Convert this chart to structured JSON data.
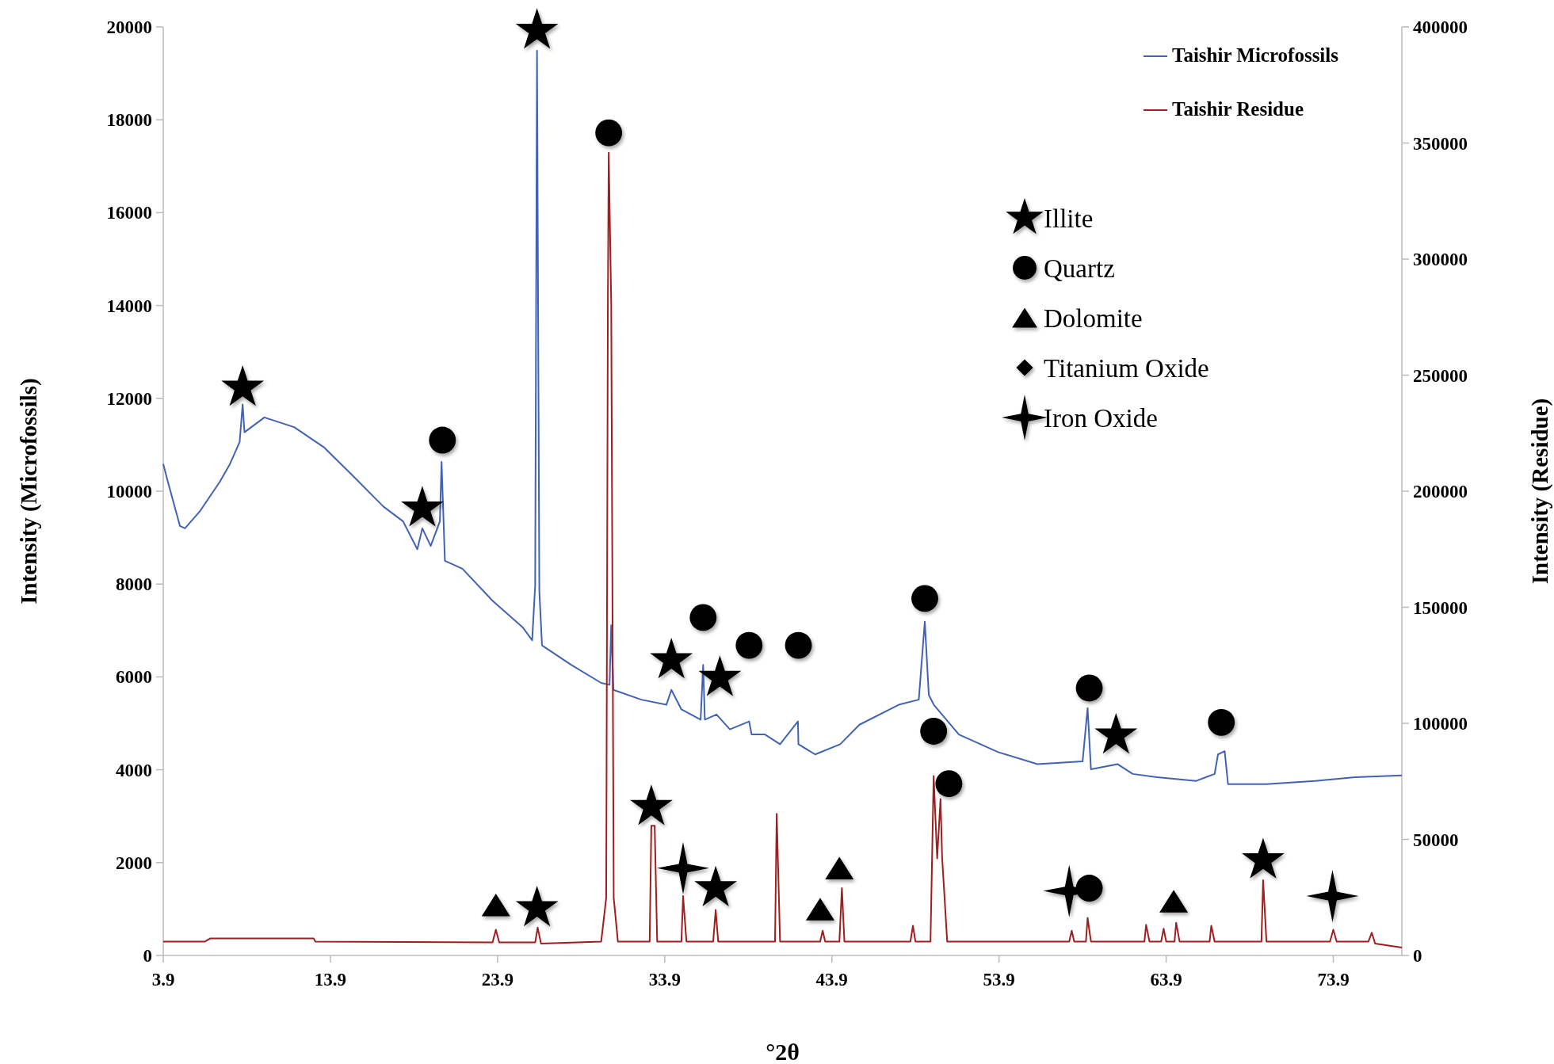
{
  "chart_data": {
    "type": "line",
    "xlabel": "°2θ",
    "ylabel": "Intensity (Microfossils)",
    "y2label": "Intensity (Residue)",
    "xlim": [
      3.9,
      78
    ],
    "xticks": [
      3.9,
      13.9,
      23.9,
      33.9,
      43.9,
      53.9,
      63.9,
      73.9
    ],
    "ylim": [
      0,
      20000
    ],
    "yticks": [
      0,
      2000,
      4000,
      6000,
      8000,
      10000,
      12000,
      14000,
      16000,
      18000,
      20000
    ],
    "y2lim": [
      0,
      400000
    ],
    "y2ticks": [
      0,
      50000,
      100000,
      150000,
      200000,
      250000,
      300000,
      350000,
      400000
    ],
    "grid": false,
    "legend": "top right",
    "series": [
      {
        "name": "Taishir Microfossils",
        "color": "#4263b3",
        "x": [
          3.9,
          4.14,
          4.9,
          5.2,
          6.1,
          7.28,
          7.87,
          8.47,
          8.65,
          8.76,
          9.95,
          11.73,
          13.5,
          15.3,
          17.07,
          18.25,
          19.1,
          19.4,
          19.9,
          20.45,
          20.55,
          20.75,
          21.8,
          23.6,
          25.4,
          25.97,
          26.15,
          26.26,
          26.4,
          26.56,
          28.3,
          30.1,
          30.6,
          30.7,
          30.83,
          32.5,
          34.0,
          34.3,
          34.9,
          36.05,
          36.2,
          36.3,
          37.0,
          37.8,
          38.95,
          39.1,
          39.9,
          40.8,
          41.87,
          41.9,
          42.9,
          44.4,
          45.55,
          47.9,
          49.1,
          49.46,
          49.7,
          50.0,
          51.5,
          53.85,
          56.2,
          58.9,
          59.2,
          59.4,
          61.0,
          61.9,
          63.35,
          65.7,
          66.8,
          67.0,
          67.4,
          67.6,
          69.9,
          72.8,
          75.2,
          78.0
        ],
        "values": [
          10590,
          10250,
          9250,
          9200,
          9570,
          10200,
          10570,
          11060,
          11870,
          11270,
          11590,
          11380,
          10950,
          10310,
          9670,
          9350,
          8750,
          9200,
          8820,
          9350,
          10630,
          8500,
          8330,
          7640,
          7070,
          6790,
          7960,
          19490,
          7850,
          6680,
          6260,
          5870,
          5830,
          7110,
          5720,
          5510,
          5400,
          5720,
          5300,
          5080,
          6260,
          5080,
          5190,
          4870,
          5040,
          4760,
          4760,
          4550,
          5040,
          4550,
          4330,
          4550,
          4970,
          5400,
          5510,
          7190,
          5610,
          5400,
          4760,
          4380,
          4120,
          4180,
          5330,
          4010,
          4120,
          3910,
          3840,
          3760,
          3910,
          4330,
          4400,
          3690,
          3690,
          3760,
          3840,
          3880
        ]
      },
      {
        "name": "Taishir Residue",
        "axis": "y2",
        "color": "#a11d1f",
        "x": [
          3.9,
          6.4,
          6.7,
          12.9,
          13.0,
          23.6,
          23.8,
          24.0,
          26.15,
          26.3,
          26.5,
          30.1,
          30.4,
          30.5,
          30.55,
          30.7,
          30.85,
          31.1,
          33.0,
          33.1,
          33.3,
          33.45,
          34.9,
          35.0,
          35.2,
          36.8,
          36.95,
          37.1,
          40.5,
          40.6,
          40.8,
          43.2,
          43.35,
          43.5,
          44.35,
          44.5,
          44.65,
          48.6,
          48.75,
          48.9,
          49.8,
          49.99,
          50.2,
          50.4,
          50.5,
          50.8,
          58.1,
          58.25,
          58.4,
          59.1,
          59.2,
          59.4,
          62.6,
          62.7,
          62.9,
          63.6,
          63.75,
          63.9,
          64.4,
          64.5,
          64.7,
          66.5,
          66.6,
          66.8,
          69.6,
          69.7,
          69.9,
          73.7,
          73.9,
          74.1,
          76.0,
          76.2,
          76.4,
          78.0
        ],
        "values": [
          6000,
          6000,
          7300,
          7300,
          6000,
          5600,
          11100,
          5600,
          5600,
          12000,
          5100,
          6000,
          24800,
          281000,
          345800,
          281000,
          24800,
          6000,
          6000,
          55900,
          55900,
          6000,
          6000,
          25600,
          6000,
          6000,
          19600,
          6000,
          6000,
          61000,
          6000,
          6000,
          10700,
          6000,
          6000,
          29000,
          6000,
          6000,
          12800,
          6000,
          6000,
          77300,
          41800,
          67400,
          41800,
          6000,
          6000,
          10700,
          6000,
          6000,
          16200,
          6000,
          6000,
          13200,
          6000,
          6000,
          11500,
          6000,
          6000,
          14100,
          6000,
          6000,
          12800,
          6000,
          6000,
          32400,
          6000,
          6000,
          11100,
          6000,
          6000,
          9800,
          5100,
          3400
        ]
      },
      {
        "name": "Illite",
        "type": "scatter",
        "marker": "star",
        "color": "#000000",
        "x": [
          8.65,
          19.4,
          26.26,
          34.3,
          37.2,
          60.9,
          33.1,
          26.26,
          36.95,
          69.7
        ],
        "values": [
          12230,
          9630,
          19920,
          6360,
          5980,
          4740,
          3200,
          1020,
          1450,
          2050
        ]
      },
      {
        "name": "Quartz",
        "type": "scatter",
        "marker": "circle",
        "color": "#000000",
        "x": [
          20.6,
          30.55,
          36.2,
          38.95,
          41.9,
          49.46,
          59.3,
          67.2,
          49.99,
          50.9,
          59.3
        ],
        "values": [
          11100,
          17720,
          7280,
          6680,
          6680,
          7690,
          5760,
          5020,
          4830,
          3700,
          1450
        ]
      },
      {
        "name": "Dolomite",
        "type": "scatter",
        "marker": "triangle",
        "color": "#000000",
        "x": [
          23.8,
          43.2,
          44.35,
          64.35
        ],
        "values": [
          1090,
          1000,
          1880,
          1170
        ]
      },
      {
        "name": "Titanium Oxide",
        "type": "scatter",
        "marker": "diamond",
        "color": "#000000"
      },
      {
        "name": "Iron Oxide",
        "type": "scatter",
        "marker": "cross",
        "color": "#000000",
        "x": [
          35.0,
          58.1,
          73.85
        ],
        "values": [
          1880,
          1390,
          1280
        ]
      }
    ]
  }
}
